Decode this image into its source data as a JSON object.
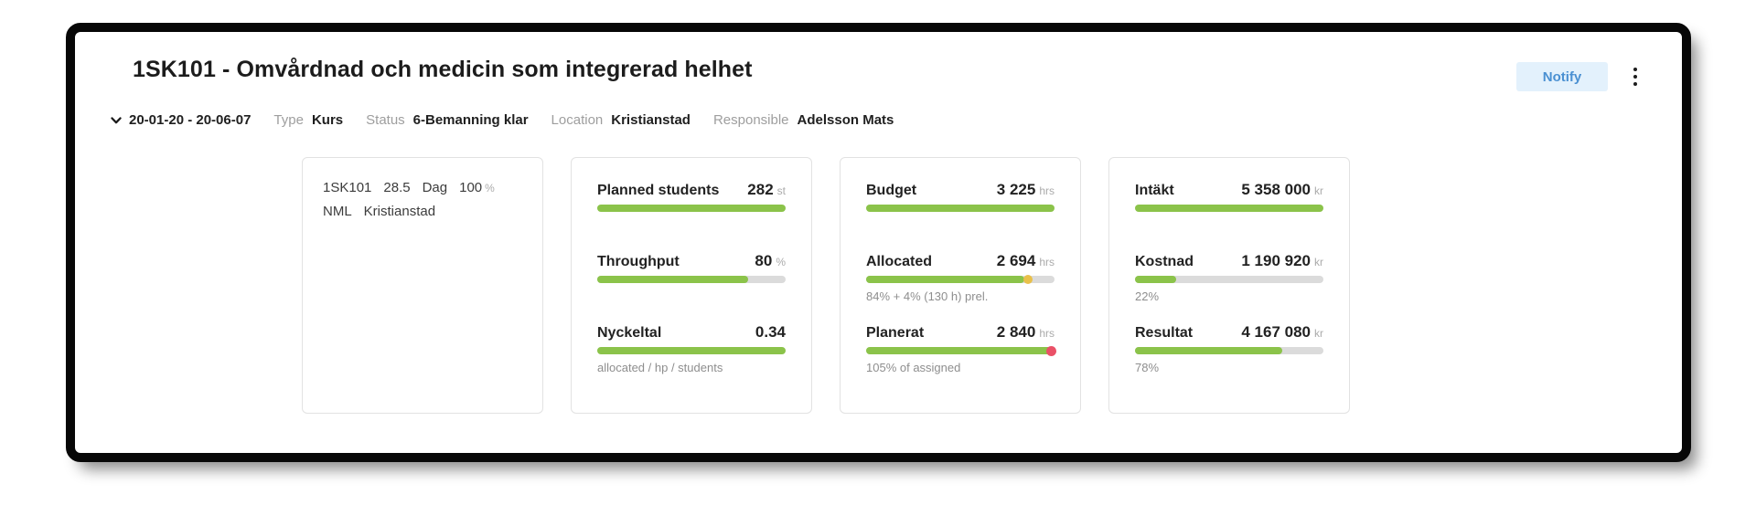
{
  "header": {
    "title": "1SK101 - Omvårdnad och medicin som integrerad helhet",
    "notify_label": "Notify",
    "menu_icon": "kebab-vertical"
  },
  "meta": {
    "expand_icon": "chevron-down",
    "date_range": "20-01-20 - 20-06-07",
    "fields": [
      {
        "label": "Type",
        "value": "Kurs"
      },
      {
        "label": "Status",
        "value": "6-Bemanning klar"
      },
      {
        "label": "Location",
        "value": "Kristianstad"
      },
      {
        "label": "Responsible",
        "value": "Adelsson Mats"
      }
    ]
  },
  "info_card": {
    "line1": [
      {
        "text": "1SK101"
      },
      {
        "text": "28.5"
      },
      {
        "text": "Dag"
      },
      {
        "text": "100",
        "unit": "%"
      }
    ],
    "line2": [
      {
        "text": "NML"
      },
      {
        "text": "Kristianstad"
      }
    ]
  },
  "metric_cards": [
    {
      "name": "students",
      "metrics": [
        {
          "label": "Planned students",
          "value": "282",
          "unit": "st",
          "caption": "",
          "bar": {
            "fill_pct": 100,
            "show_track": false
          }
        },
        {
          "label": "Throughput",
          "value": "80",
          "unit": "%",
          "caption": "",
          "bar": {
            "fill_pct": 80,
            "show_track": true
          }
        },
        {
          "label": "Nyckeltal",
          "value": "0.34",
          "unit": "",
          "caption": "allocated / hp / students",
          "bar": {
            "fill_pct": 100,
            "show_track": false
          }
        }
      ]
    },
    {
      "name": "hours",
      "metrics": [
        {
          "label": "Budget",
          "value": "3 225",
          "unit": "hrs",
          "caption": "",
          "bar": {
            "fill_pct": 100,
            "show_track": false
          }
        },
        {
          "label": "Allocated",
          "value": "2 694",
          "unit": "hrs",
          "caption": "84% + 4% (130 h) prel.",
          "bar": {
            "fill_pct": 84,
            "show_track": true,
            "yellow_dot_pct": 86
          }
        },
        {
          "label": "Planerat",
          "value": "2 840",
          "unit": "hrs",
          "caption": "105% of assigned",
          "bar": {
            "fill_pct": 100,
            "show_track": false,
            "red_dot": true
          }
        }
      ]
    },
    {
      "name": "economy",
      "metrics": [
        {
          "label": "Intäkt",
          "value": "5 358 000",
          "unit": "kr",
          "caption": "",
          "bar": {
            "fill_pct": 100,
            "show_track": false
          }
        },
        {
          "label": "Kostnad",
          "value": "1 190 920",
          "unit": "kr",
          "caption": "22%",
          "bar": {
            "fill_pct": 22,
            "show_track": true
          }
        },
        {
          "label": "Resultat",
          "value": "4 167 080",
          "unit": "kr",
          "caption": "78%",
          "bar": {
            "fill_pct": 78,
            "show_track": true
          }
        }
      ]
    }
  ],
  "colors": {
    "bar_green": "#8bc34a",
    "bar_yellow": "#e9c04a",
    "bar_red": "#ea5167",
    "bar_track": "#dbdbdb",
    "notify_bg": "#e3f1fc",
    "notify_text": "#4a90d2"
  }
}
